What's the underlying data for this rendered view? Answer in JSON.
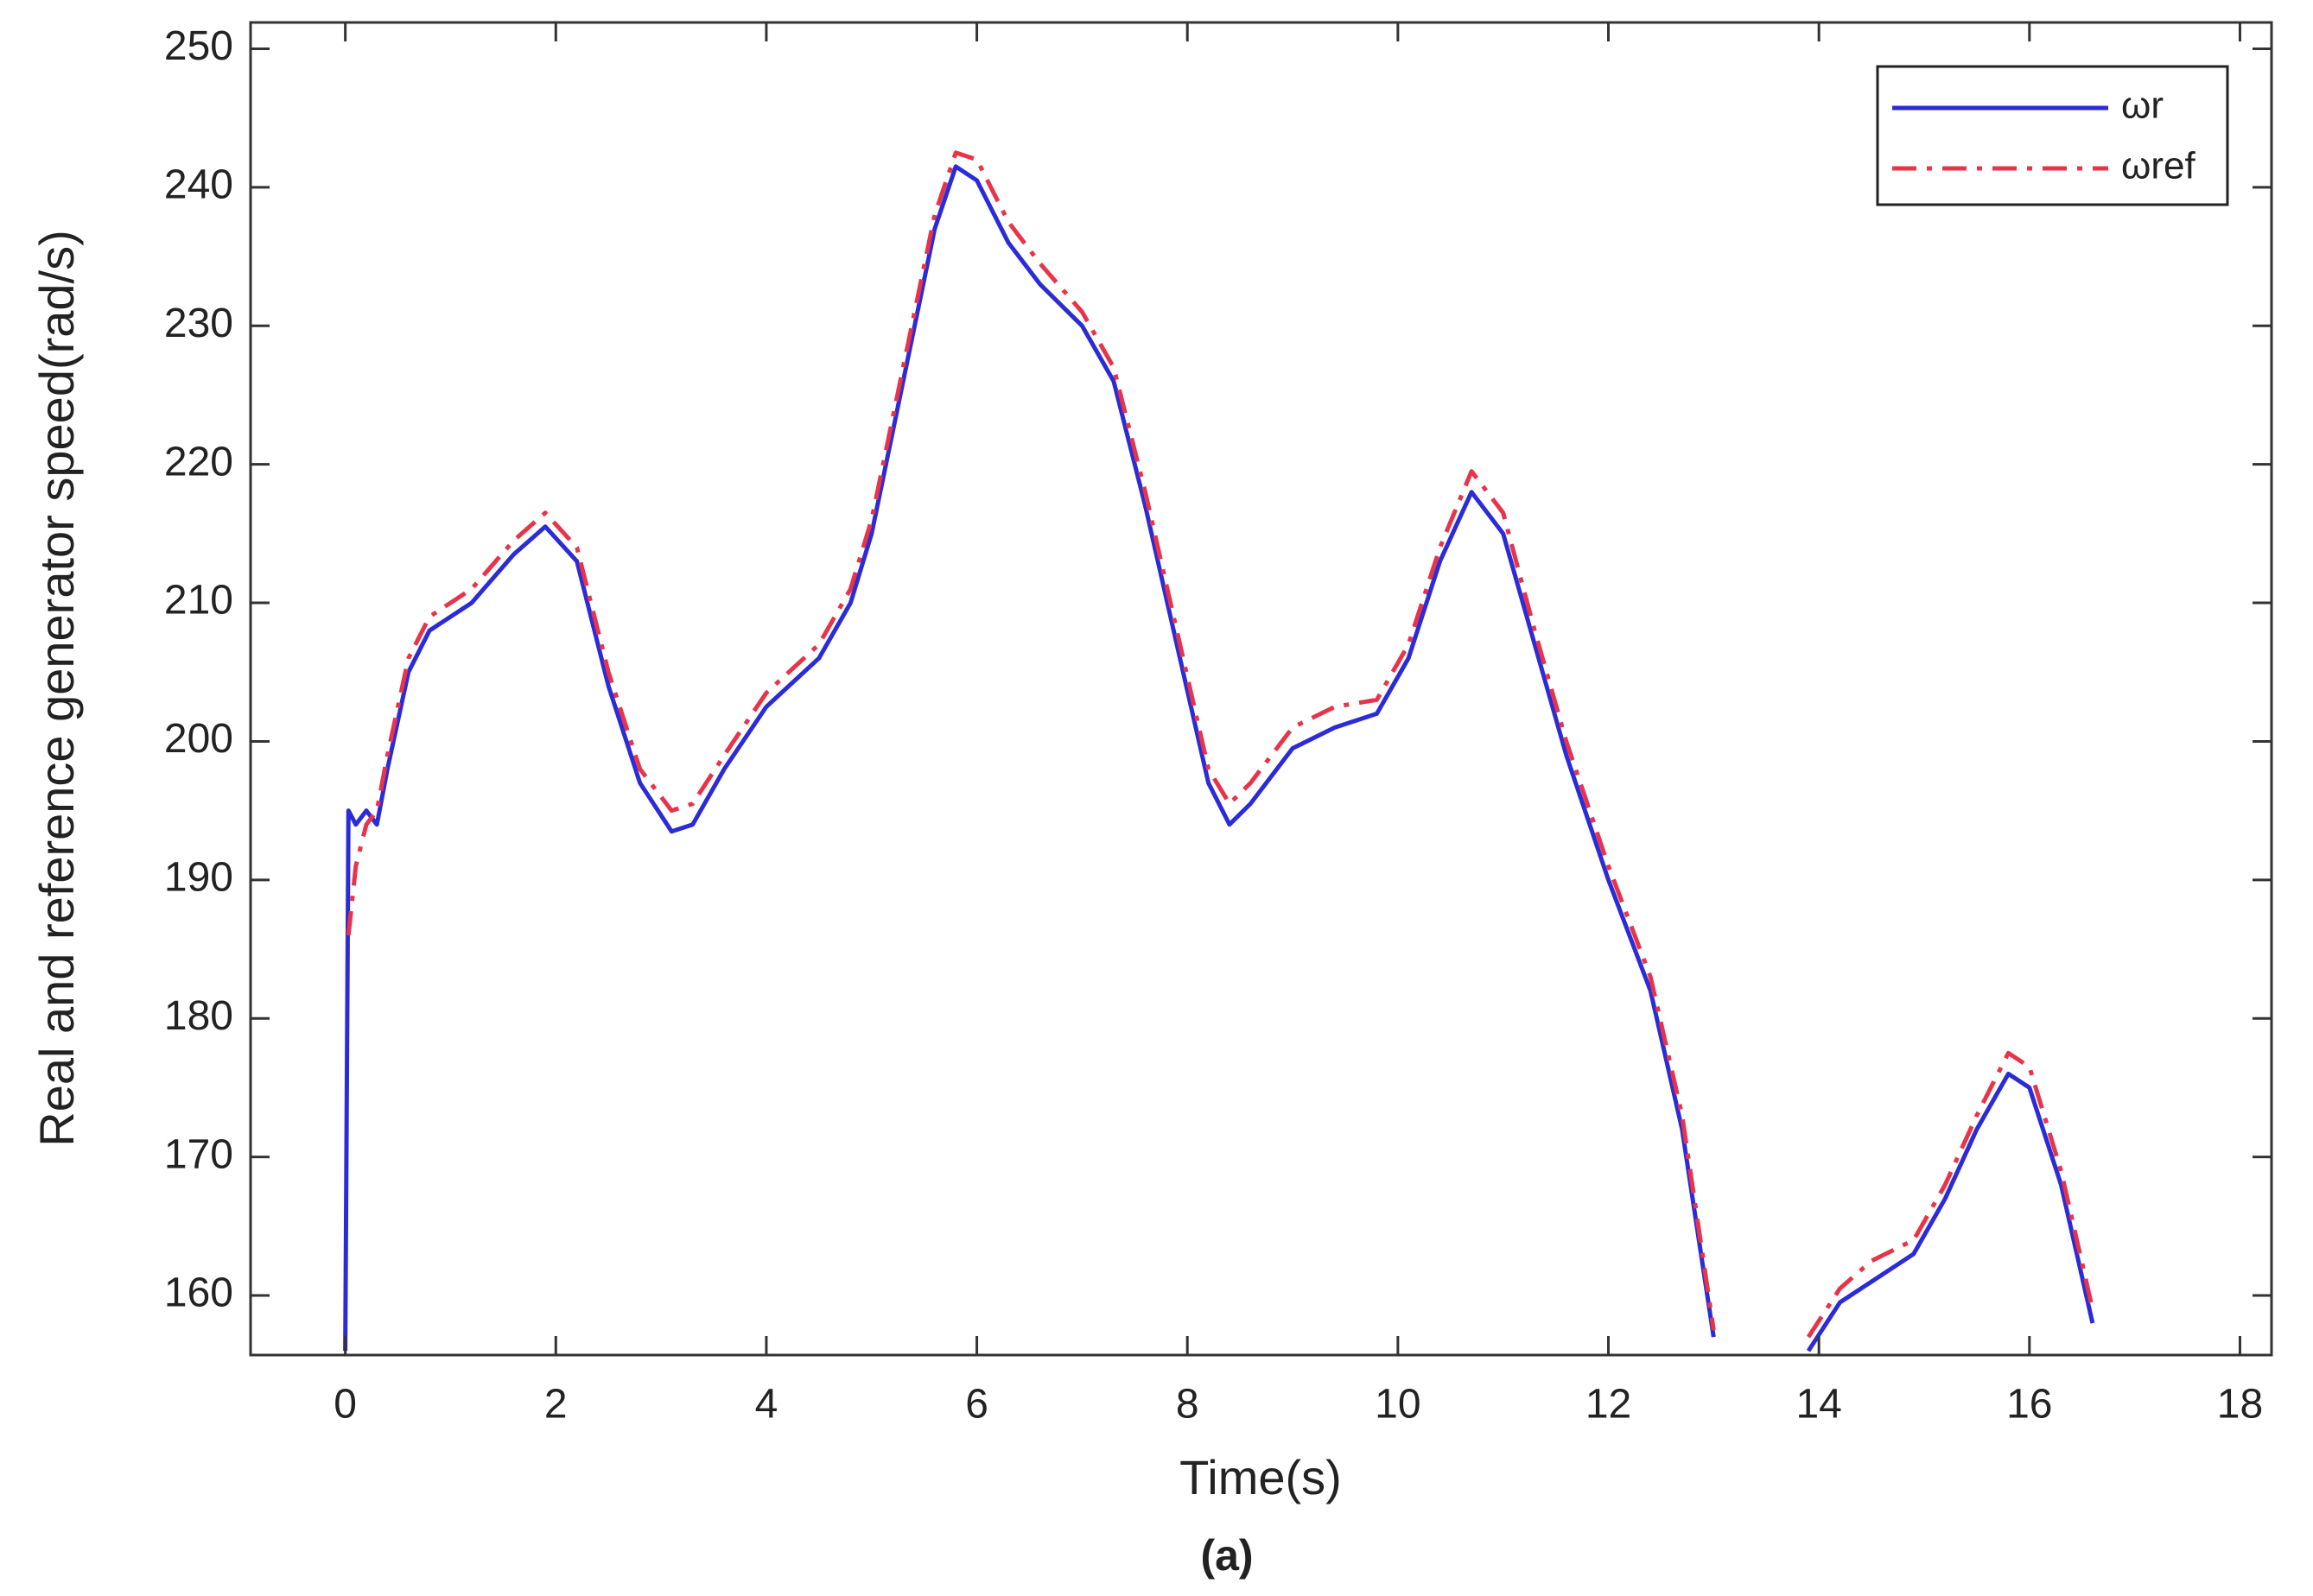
{
  "chart_data": {
    "type": "line",
    "caption": "(a)",
    "xlabel": "Time(s)",
    "ylabel": "Real and reference generator speed(rad/s)",
    "x": [
      0,
      0.03,
      0.1,
      0.2,
      0.3,
      0.4,
      0.6,
      0.8,
      1.2,
      1.6,
      1.9,
      2.2,
      2.5,
      2.8,
      3.1,
      3.3,
      3.6,
      4.0,
      4.5,
      4.8,
      5.0,
      5.3,
      5.6,
      5.8,
      6.0,
      6.3,
      6.6,
      7.0,
      7.3,
      7.6,
      7.9,
      8.2,
      8.4,
      8.6,
      9.0,
      9.4,
      9.8,
      10.1,
      10.4,
      10.7,
      11.0,
      11.3,
      11.6,
      12.0,
      12.4,
      12.7,
      13.0,
      13.5,
      13.9,
      14.2,
      14.5,
      14.9,
      15.2,
      15.5,
      15.8,
      16.0,
      16.3,
      16.6
    ],
    "series": [
      {
        "name": "ωr",
        "color": "#2b2bd8",
        "dash": "solid",
        "values": [
          156,
          195,
          194,
          195,
          194,
          198,
          205,
          208,
          210,
          213.5,
          215.5,
          213,
          204,
          197,
          193.5,
          194,
          198,
          202.5,
          206,
          210,
          215,
          226,
          237,
          241.5,
          240.5,
          236,
          233,
          230,
          226,
          217,
          207,
          197,
          194,
          195.5,
          199.5,
          201,
          202,
          206,
          213,
          218,
          215,
          207,
          199,
          190,
          182,
          172,
          157,
          null,
          156,
          159.5,
          161,
          163,
          167,
          172,
          176,
          175,
          168,
          158
        ]
      },
      {
        "name": "ωref",
        "color": "#e8344a",
        "dash": "dashdot",
        "values": [
          null,
          186,
          191,
          194,
          195,
          199,
          206,
          209,
          211,
          214.5,
          216.5,
          214,
          205,
          198,
          195,
          195.5,
          199,
          203.5,
          207,
          211,
          216,
          227,
          238,
          242.5,
          242,
          237.5,
          234.5,
          231,
          227,
          218,
          208,
          198,
          195.5,
          197,
          201,
          202.5,
          203,
          207,
          214,
          219.5,
          216.5,
          208,
          200,
          191,
          183,
          173,
          157.5,
          null,
          157,
          160.5,
          162.5,
          164,
          168,
          173,
          177.5,
          176.5,
          169,
          159
        ]
      }
    ],
    "xlim": [
      -0.9,
      18.3
    ],
    "ylim": [
      155.7,
      251.9
    ],
    "xticks": [
      0,
      2,
      4,
      6,
      8,
      10,
      12,
      14,
      16,
      18
    ],
    "yticks": [
      160,
      170,
      180,
      190,
      200,
      210,
      220,
      230,
      240,
      250
    ],
    "grid": false,
    "legend": "top-right"
  }
}
